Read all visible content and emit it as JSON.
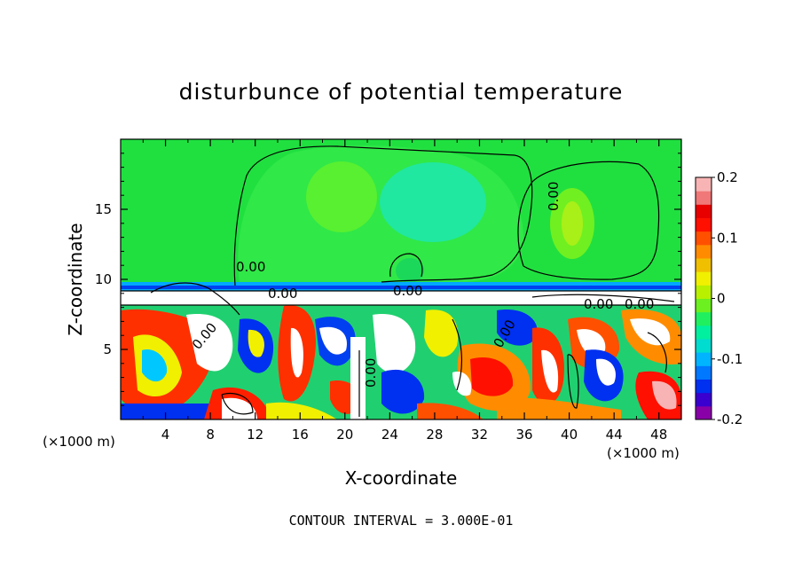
{
  "chart_data": {
    "type": "heatmap",
    "title": "disturbunce of potential temperature",
    "xlabel": "X-coordinate",
    "ylabel": "Z-coordinate",
    "x_unit_left": "(×1000 m)",
    "x_unit_right": "(×1000 m)",
    "xlim": [
      0,
      50
    ],
    "ylim": [
      0,
      20
    ],
    "x_ticks": [
      "4",
      "8",
      "12",
      "16",
      "20",
      "24",
      "28",
      "32",
      "36",
      "40",
      "44",
      "48"
    ],
    "x_tick_values": [
      4,
      8,
      12,
      16,
      20,
      24,
      28,
      32,
      36,
      40,
      44,
      48
    ],
    "y_ticks": [
      "5",
      "10",
      "15"
    ],
    "y_tick_values": [
      5,
      10,
      15
    ],
    "colorbar": {
      "range": [
        -0.2,
        0.2
      ],
      "labels": [
        "0.2",
        "0.1",
        "0",
        "-0.1",
        "-0.2"
      ],
      "label_values": [
        0.2,
        0.1,
        0,
        -0.1,
        -0.2
      ],
      "colors": [
        "#8a00a8",
        "#3a00d0",
        "#0030f0",
        "#0078ff",
        "#00b4ff",
        "#00dcd0",
        "#00f0a0",
        "#20f060",
        "#6cf020",
        "#b8f000",
        "#f0f000",
        "#f0c000",
        "#ff8c00",
        "#ff5000",
        "#ff1000",
        "#e80000",
        "#f07878",
        "#f8b4b4"
      ]
    },
    "contour_labels": [
      "0.00",
      "0.00",
      "0.00",
      "0.00",
      "0.00",
      "0.00",
      "0.00",
      "0.00",
      "0.00"
    ],
    "footer": "CONTOUR INTERVAL = 3.000E-01"
  }
}
